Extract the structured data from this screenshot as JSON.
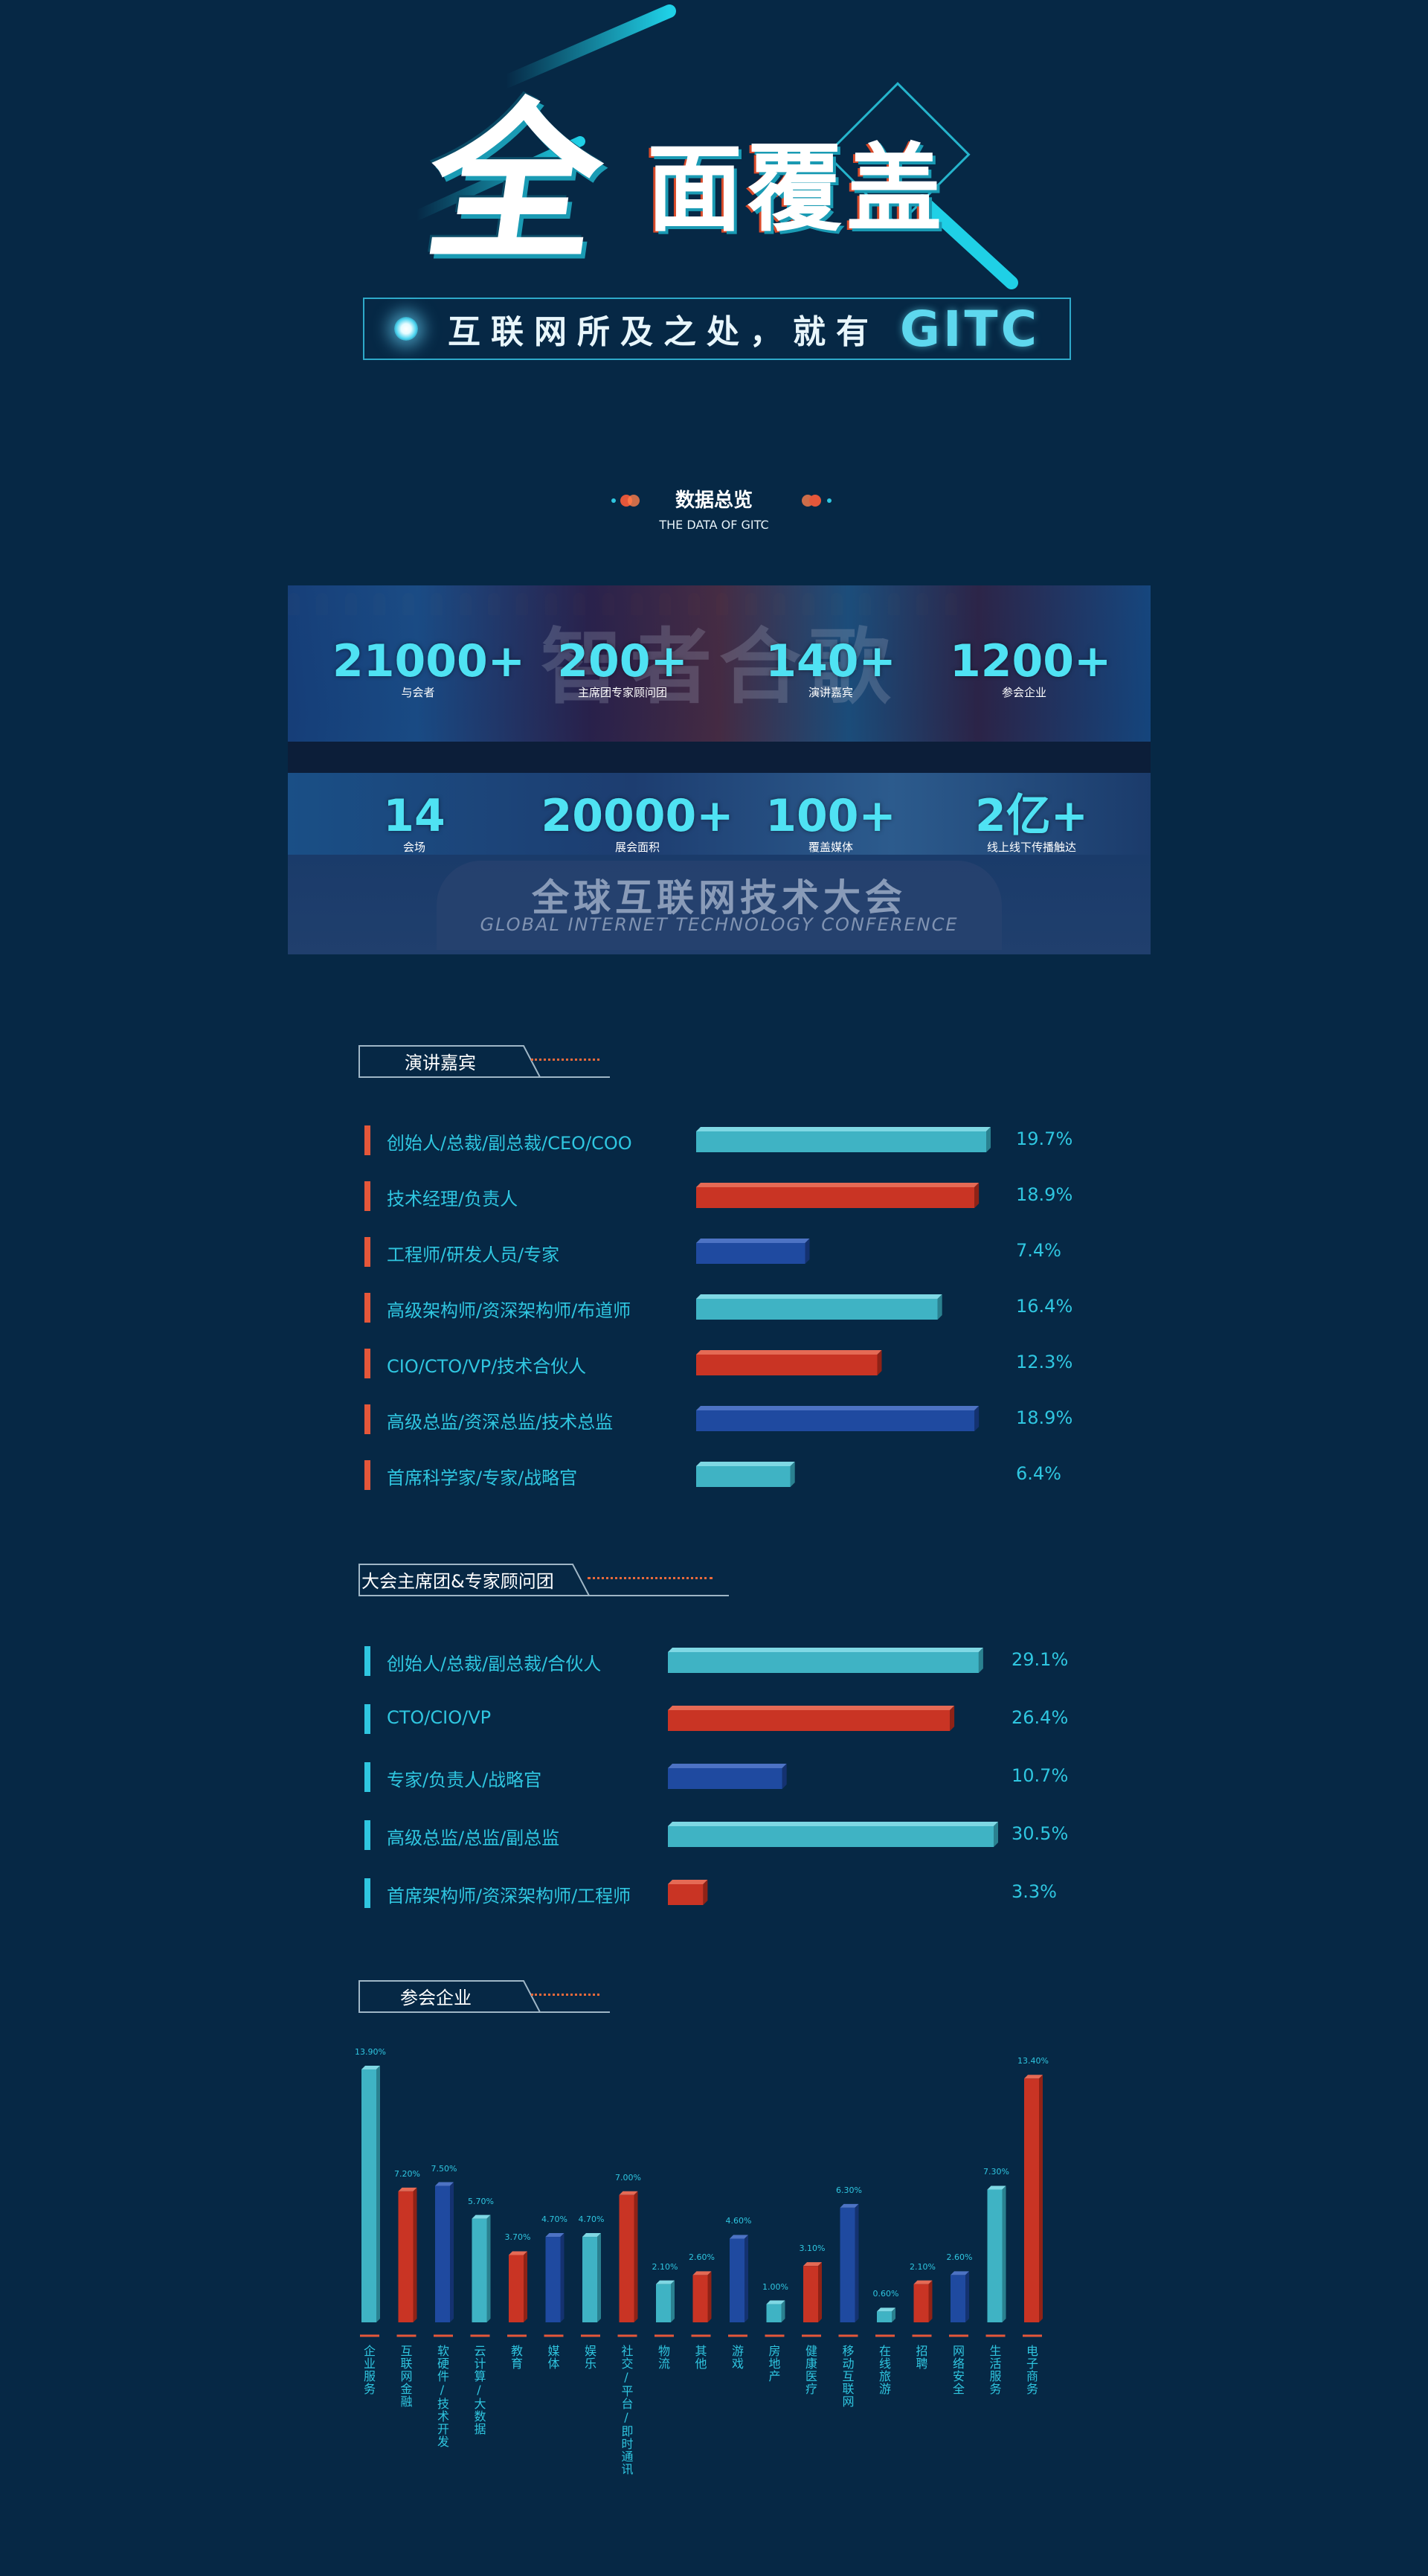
{
  "hero": {
    "title_part1": "全",
    "title_part2": "面覆盖",
    "slogan": "互联网所及之处，就有",
    "slogan_brand": "GITC"
  },
  "overview": {
    "title": "数据总览",
    "subtitle": "THE DATA OF GITC",
    "stats": [
      {
        "value": "21000+",
        "label": "与会者"
      },
      {
        "value": "200+",
        "label": "主席团专家顾问团"
      },
      {
        "value": "140+",
        "label": "演讲嘉宾"
      },
      {
        "value": "1200+",
        "label": "参会企业"
      },
      {
        "value": "14",
        "label": "会场"
      },
      {
        "value": "20000+",
        "label": "展会面积"
      },
      {
        "value": "100+",
        "label": "覆盖媒体"
      },
      {
        "value": "2亿+",
        "label": "线上线下传播触达"
      }
    ],
    "photo": {
      "banner_cn": "全球互联网技术大会",
      "banner_en": "GLOBAL INTERNET TECHNOLOGY CONFERENCE",
      "background_text": "智者合歌"
    }
  },
  "colors": {
    "cyan": "#3fb3c4",
    "red": "#c93424",
    "blue": "#1f4aa0",
    "accent_text": "#2fc6e0",
    "background": "#062845"
  },
  "chart_data": [
    {
      "type": "bar",
      "orientation": "horizontal",
      "title": "演讲嘉宾",
      "categories": [
        "创始人/总裁/副总裁/CEO/COO",
        "技术经理/负责人",
        "工程师/研发人员/专家",
        "高级架构师/资深架构师/布道师",
        "CIO/CTO/VP/技术合伙人",
        "高级总监/资深总监/技术总监",
        "首席科学家/专家/战略官"
      ],
      "values": [
        19.7,
        18.9,
        7.4,
        16.4,
        12.3,
        18.9,
        6.4
      ],
      "value_labels": [
        "19.7%",
        "18.9%",
        "7.4%",
        "16.4%",
        "12.3%",
        "18.9%",
        "6.4%"
      ],
      "bar_colors": [
        "cyan",
        "red",
        "blue",
        "cyan",
        "red",
        "blue",
        "cyan"
      ]
    },
    {
      "type": "bar",
      "orientation": "horizontal",
      "title": "大会主席团&专家顾问团",
      "categories": [
        "创始人/总裁/副总裁/合伙人",
        "CTO/CIO/VP",
        "专家/负责人/战略官",
        "高级总监/总监/副总监",
        "首席架构师/资深架构师/工程师"
      ],
      "values": [
        29.1,
        26.4,
        10.7,
        30.5,
        3.3
      ],
      "value_labels": [
        "29.1%",
        "26.4%",
        "10.7%",
        "30.5%",
        "3.3%"
      ],
      "bar_colors": [
        "cyan",
        "red",
        "blue",
        "cyan",
        "red"
      ]
    },
    {
      "type": "bar",
      "orientation": "vertical",
      "title": "参会企业",
      "categories": [
        "企业服务",
        "互联网金融",
        "软硬件/技术开发",
        "云计算/大数据",
        "教育",
        "媒体",
        "娱乐",
        "社交/平台/即时通讯",
        "物流",
        "其他",
        "游戏",
        "房地产",
        "健康医疗",
        "移动互联网",
        "在线旅游",
        "招聘",
        "网络安全",
        "生活服务",
        "电子商务"
      ],
      "values": [
        13.9,
        7.2,
        7.5,
        5.7,
        3.7,
        4.7,
        4.7,
        7.0,
        2.1,
        2.6,
        4.6,
        1.0,
        3.1,
        6.3,
        0.6,
        2.1,
        2.6,
        7.3,
        13.4
      ],
      "value_labels": [
        "13.90%",
        "7.20%",
        "7.50%",
        "5.70%",
        "3.70%",
        "4.70%",
        "4.70%",
        "7.00%",
        "2.10%",
        "2.60%",
        "4.60%",
        "1.00%",
        "3.10%",
        "6.30%",
        "0.60%",
        "2.10%",
        "2.60%",
        "7.30%",
        "13.40%"
      ],
      "bar_colors": [
        "cyan",
        "red",
        "blue",
        "cyan",
        "red",
        "blue",
        "cyan",
        "red",
        "cyan",
        "red",
        "blue",
        "cyan",
        "red",
        "blue",
        "cyan",
        "red",
        "blue",
        "cyan",
        "red"
      ]
    }
  ]
}
